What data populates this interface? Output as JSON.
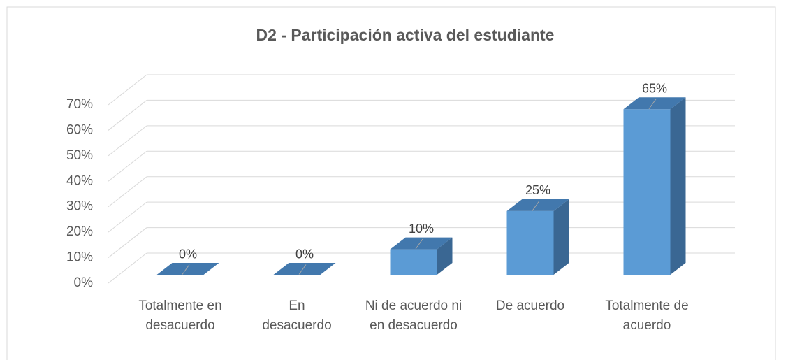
{
  "chart_data": {
    "type": "bar3d",
    "title": "D2 - Participación activa del estudiante",
    "categories": [
      "Totalmente en desacuerdo",
      "En desacuerdo",
      "Ni de acuerdo ni en desacuerdo",
      "De acuerdo",
      "Totalmente de acuerdo"
    ],
    "values": [
      0,
      0,
      10,
      25,
      65
    ],
    "value_labels": [
      "0%",
      "0%",
      "10%",
      "25%",
      "65%"
    ],
    "color": "#5b9bd5",
    "ylim": [
      0,
      70
    ],
    "yticks": [
      {
        "value": 0,
        "label": "0%"
      },
      {
        "value": 10,
        "label": "10%"
      },
      {
        "value": 20,
        "label": "20%"
      },
      {
        "value": 30,
        "label": "30%"
      },
      {
        "value": 40,
        "label": "40%"
      },
      {
        "value": 50,
        "label": "50%"
      },
      {
        "value": 60,
        "label": "60%"
      },
      {
        "value": 70,
        "label": "70%"
      }
    ],
    "grid": true
  }
}
